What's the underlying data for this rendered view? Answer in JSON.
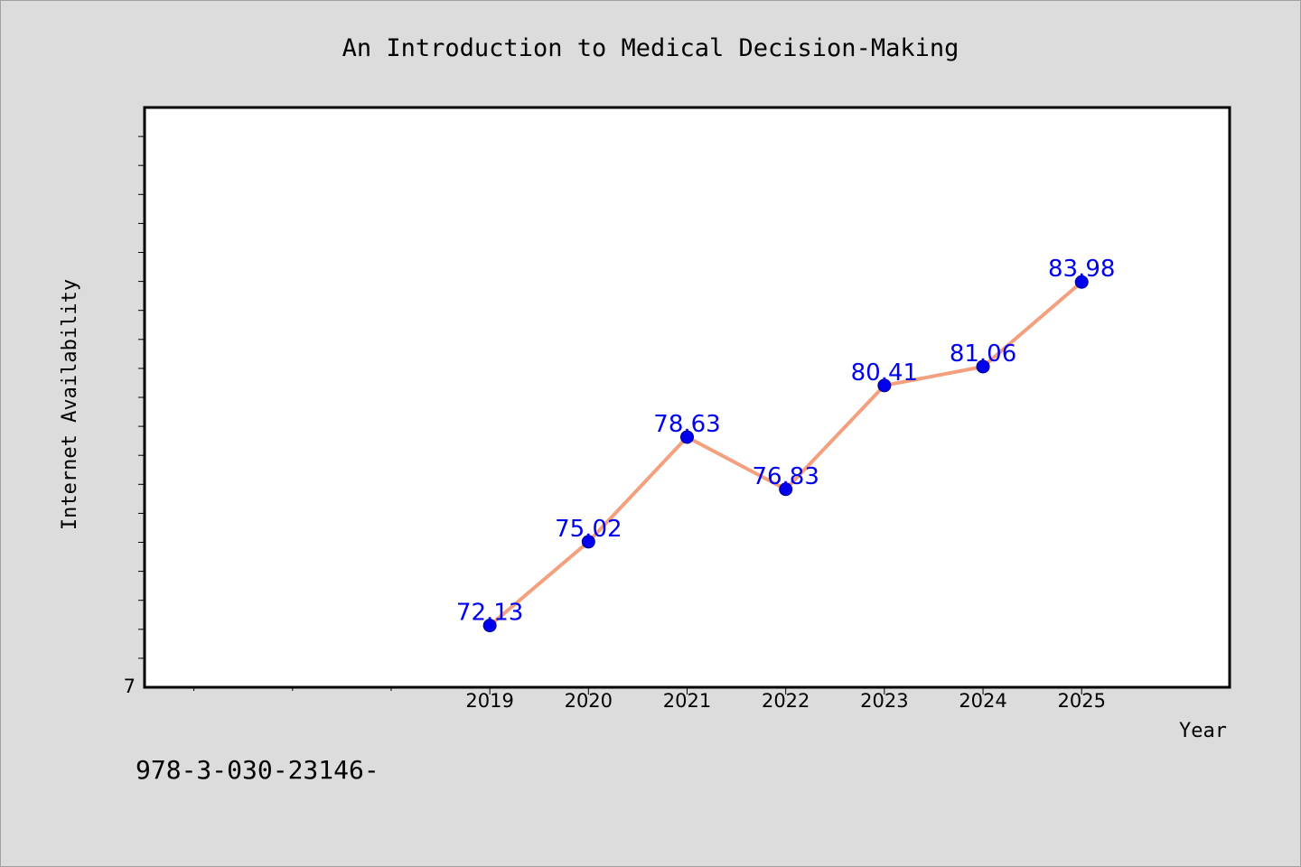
{
  "chart_data": {
    "type": "line",
    "title": "An Introduction to Medical Decision-Making",
    "xlabel": "Year",
    "ylabel": "Internet Availability",
    "x": [
      2019,
      2020,
      2021,
      2022,
      2023,
      2024,
      2025
    ],
    "series": [
      {
        "values": [
          72.13,
          75.02,
          78.63,
          76.83,
          80.41,
          81.06,
          83.98
        ],
        "labels": [
          "72.13",
          "75.02",
          "78.63",
          "76.83",
          "80.41",
          "81.06",
          "83.98"
        ]
      }
    ],
    "xlim": [
      2015.5,
      2026.5
    ],
    "ylim": [
      70,
      90
    ],
    "y_tick_label": "7",
    "grid": false,
    "line_color": "#f4a07f",
    "marker_color": "#0000ee",
    "label_color": "#0000ee"
  },
  "footnote": "978-3-030-23146-"
}
